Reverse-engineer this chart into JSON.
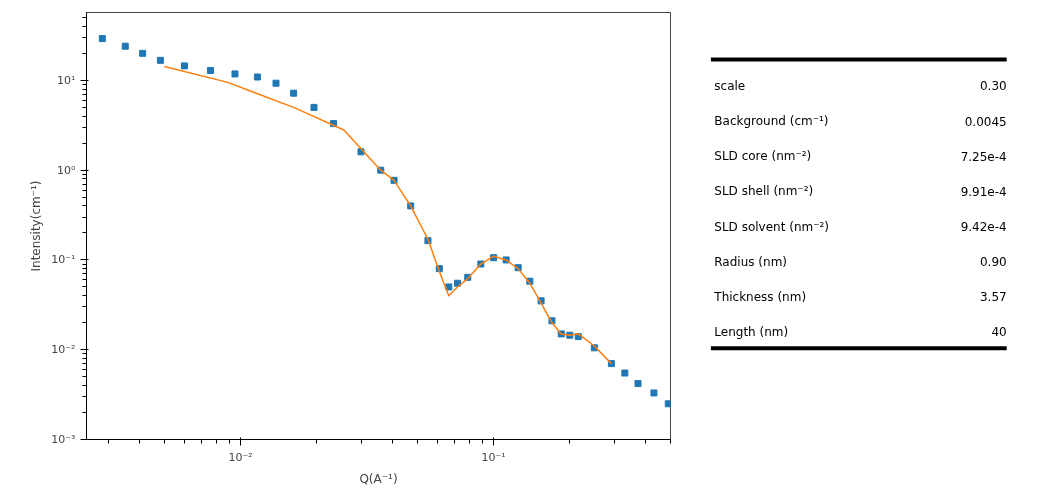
{
  "chart_data": [
    {
      "type": "scatter",
      "xlabel": "Q(A⁻¹)",
      "ylabel": "Intensity(cm⁻¹)",
      "log": "xy",
      "xlim": [
        0.00246,
        0.5
      ],
      "ylim": [
        0.001,
        57
      ],
      "xticks": [
        {
          "value": 0.01,
          "label": "10⁻²"
        },
        {
          "value": 0.1,
          "label": "10⁻¹"
        }
      ],
      "yticks": [
        {
          "value": 0.001,
          "label": "10⁻³"
        },
        {
          "value": 0.01,
          "label": "10⁻²"
        },
        {
          "value": 0.1,
          "label": "10⁻¹"
        },
        {
          "value": 1,
          "label": "10⁰"
        },
        {
          "value": 10,
          "label": "10¹"
        }
      ],
      "series": [
        {
          "type": "scatter",
          "marker": "square",
          "color": "#1f77b4",
          "x": [
            0.00284,
            0.0035,
            0.0041,
            0.00482,
            0.006,
            0.0076,
            0.0095,
            0.01165,
            0.0138,
            0.0162,
            0.0195,
            0.0233,
            0.0299,
            0.0358,
            0.0404,
            0.047,
            0.055,
            0.061,
            0.0665,
            0.072,
            0.079,
            0.089,
            0.1,
            0.112,
            0.125,
            0.139,
            0.154,
            0.17,
            0.185,
            0.2,
            0.216,
            0.25,
            0.292,
            0.33,
            0.372,
            0.43,
            0.49
          ],
          "values": [
            29.2,
            24,
            20,
            16.7,
            14.5,
            12.9,
            11.8,
            10.9,
            9.3,
            7.2,
            5.0,
            3.3,
            1.6,
            1.0,
            0.77,
            0.4,
            0.164,
            0.08,
            0.05,
            0.055,
            0.064,
            0.09,
            0.106,
            0.1,
            0.082,
            0.058,
            0.035,
            0.021,
            0.015,
            0.0145,
            0.014,
            0.0105,
            0.007,
            0.0055,
            0.0042,
            0.0033,
            0.0025
          ]
        },
        {
          "type": "line",
          "line_style": "solid",
          "color": "#ff7f0e",
          "x": [
            0.005,
            0.0089,
            0.0162,
            0.0256,
            0.0358,
            0.0404,
            0.047,
            0.055,
            0.061,
            0.0665,
            0.072,
            0.079,
            0.089,
            0.1,
            0.112,
            0.125,
            0.139,
            0.154,
            0.17,
            0.185,
            0.2,
            0.216,
            0.25,
            0.292
          ],
          "values": [
            14.3,
            9.5,
            5.0,
            2.8,
            1.0,
            0.77,
            0.4,
            0.17,
            0.075,
            0.04,
            0.05,
            0.062,
            0.09,
            0.11,
            0.1,
            0.08,
            0.055,
            0.033,
            0.02,
            0.015,
            0.0145,
            0.015,
            0.011,
            0.007
          ]
        }
      ]
    },
    {
      "type": "other",
      "annotations": [
        "scale",
        "0.30",
        "Background (cm⁻¹)",
        "0.0045",
        "SLD core (nm⁻²)",
        "7.25e-4",
        "SLD shell (nm⁻²)",
        "9.91e-4",
        "SLD solvent (nm⁻²)",
        "9.42e-4",
        "Radius (nm)",
        "0.90",
        "Thickness (nm)",
        "3.57",
        "Length (nm)",
        "40"
      ]
    }
  ]
}
